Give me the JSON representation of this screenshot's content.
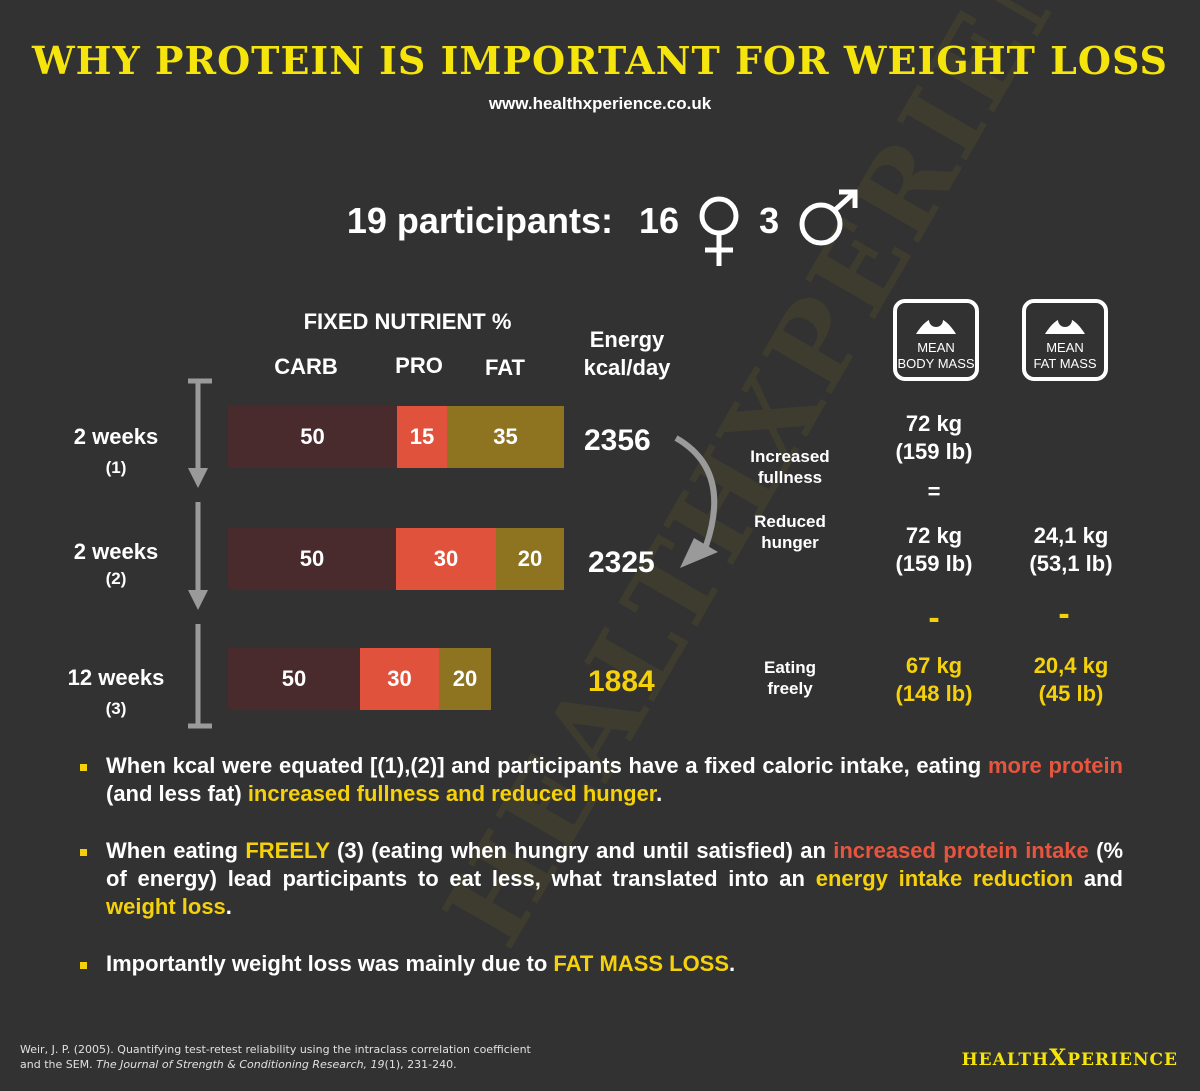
{
  "header": {
    "title": "WHY PROTEIN IS IMPORTANT FOR WEIGHT LOSS",
    "url": "www.healthxperience.co.uk"
  },
  "participants": {
    "label": "19 participants:",
    "female_count": "16",
    "male_count": "3"
  },
  "table_header": {
    "fixed_nutrient": "FIXED NUTRIENT %",
    "carb": "CARB",
    "pro": "PRO",
    "fat": "FAT",
    "energy_line1": "Energy",
    "energy_line2": "kcal/day"
  },
  "phases": [
    {
      "weeks": "2 weeks",
      "index": "(1)",
      "carb": "50",
      "pro": "15",
      "fat": "35",
      "kcal": "2356"
    },
    {
      "weeks": "2 weeks",
      "index": "(2)",
      "carb": "50",
      "pro": "30",
      "fat": "20",
      "kcal": "2325"
    },
    {
      "weeks": "12 weeks",
      "index": "(3)",
      "carb": "50",
      "pro": "30",
      "fat": "20",
      "kcal": "1884"
    }
  ],
  "effects": {
    "increased_fullness_1": "Increased",
    "increased_fullness_2": "fullness",
    "reduced_hunger_1": "Reduced",
    "reduced_hunger_2": "hunger",
    "eating_freely_1": "Eating",
    "eating_freely_2": "freely"
  },
  "scales": {
    "body_mass_1": "MEAN",
    "body_mass_2": "BODY MASS",
    "fat_mass_1": "MEAN",
    "fat_mass_2": "FAT MASS"
  },
  "masses": {
    "body_1_kg": "72 kg",
    "body_1_lb": "(159 lb)",
    "equals": "=",
    "body_2_kg": "72 kg",
    "body_2_lb": "(159 lb)",
    "fat_2_kg": "24,1 kg",
    "fat_2_lb": "(53,1 lb)",
    "minus": "-",
    "body_3_kg": "67 kg",
    "body_3_lb": "(148 lb)",
    "fat_3_kg": "20,4 kg",
    "fat_3_lb": "(45 lb)"
  },
  "bullets": {
    "b1_a": "When kcal were equated [(1),(2)] and participants have a fixed caloric intake, eating ",
    "b1_b": "more protein",
    "b1_c": " (and less fat) ",
    "b1_d": "increased fullness and reduced hunger",
    "b1_e": ".",
    "b2_a": "When eating ",
    "b2_b": "FREELY",
    "b2_c": " (3) (eating when hungry and until satisfied) an ",
    "b2_d": "increased protein intake",
    "b2_e": " (% of energy) lead participants to eat less, what translated into an ",
    "b2_f": "energy intake reduction",
    "b2_g": " and ",
    "b2_h": "weight loss",
    "b2_i": ".",
    "b3_a": "Importantly weight loss was mainly due to ",
    "b3_b": "FAT MASS LOSS",
    "b3_c": "."
  },
  "reference": {
    "line1": "Weir, J. P. (2005). Quantifying test-retest reliability using the intraclass correlation coefficient",
    "line2_a": "and the SEM. ",
    "line2_b": "The Journal of Strength & Conditioning Research, 19",
    "line2_c": "(1), 231-240."
  },
  "logo": {
    "left": "HEALTH",
    "x": "X",
    "right": "PERIENCE"
  },
  "watermark": "HEALTHXPERIENCE",
  "colors": {
    "background": "#323232",
    "title_yellow": "#f5e50c",
    "highlight_yellow": "#f5d10c",
    "highlight_red": "#e8553e",
    "carb": "#4a2b2d",
    "pro": "#e0523c",
    "fat": "#8e7320"
  },
  "icons": [
    "female-symbol-icon",
    "male-symbol-icon",
    "scale-icon",
    "down-arrow-icon",
    "curved-arrow-icon"
  ]
}
